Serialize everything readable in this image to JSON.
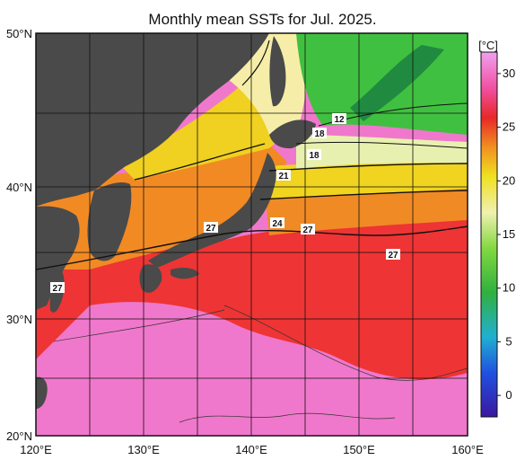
{
  "title": "Monthly mean SSTs for Jul. 2025.",
  "colorbar": {
    "unit": "[°C]",
    "ticks": [
      "30",
      "25",
      "20",
      "15",
      "10",
      "5",
      "0"
    ],
    "tick_values": [
      30,
      25,
      20,
      15,
      10,
      5,
      0
    ],
    "range": [
      -2,
      32
    ]
  },
  "axes": {
    "lat_labels": [
      "50°N",
      "40°N",
      "30°N",
      "20°N"
    ],
    "lon_labels": [
      "120°E",
      "130°E",
      "140°E",
      "150°E",
      "160°E"
    ]
  },
  "contour_labels": [
    "12",
    "18",
    "18",
    "21",
    "24",
    "27",
    "27",
    "27",
    "27"
  ],
  "colors": {
    "land": "#4a4a4a",
    "warm_pink": "#f070c8",
    "red": "#ee3030",
    "orange": "#f08020",
    "yellow": "#f0d820",
    "pale": "#f6f0b0",
    "green": "#40c040"
  }
}
